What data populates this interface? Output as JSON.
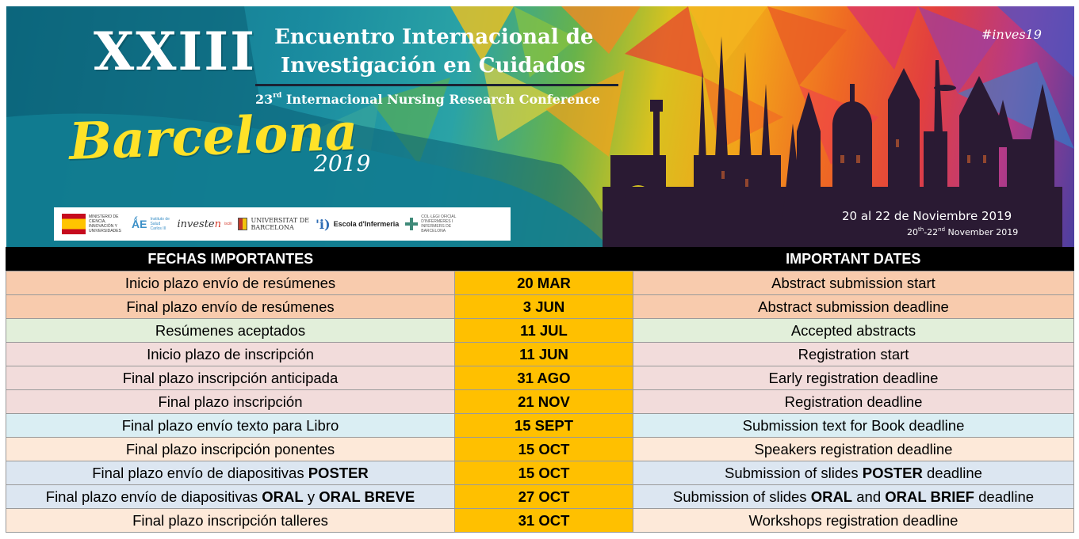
{
  "banner": {
    "number": "XXIII",
    "title_line1": "Encuentro Internacional de",
    "title_line2": "Investigación en Cuidados",
    "subtitle_ordinal": "23",
    "subtitle_suffix": "rd",
    "subtitle_text": "Internacional Nursing Research Conference",
    "city": "Barcelona",
    "year": "2019",
    "hashtag": "#inves19",
    "dates_es": "20 al 22 de Noviembre 2019",
    "dates_en_day1": "20",
    "dates_en_sup1": "th",
    "dates_en_day2": "-22",
    "dates_en_sup2": "nd",
    "dates_en_rest": " November 2019",
    "logos": {
      "ministerio": "MINISTERIO DE CIENCIA, INNOVACIÓN Y UNIVERSIDADES",
      "isc_mark": "ǺE",
      "isc_text": "Instituto de Salud Carlos III",
      "investen_a": "investe",
      "investen_b": "n",
      "investen_sub": "isciii",
      "ub_text_1": "UNIVERSITAT DE",
      "ub_text_2": "BARCELONA",
      "escola_mark": "'i)",
      "escola_text": "Escola d'Infermeria",
      "col_text": "COL·LEGI OFICIAL D'INFERMERES I INFERMERS DE BARCELONA"
    }
  },
  "table": {
    "header_es": "FECHAS IMPORTANTES",
    "header_date": "",
    "header_en": "IMPORTANT DATES",
    "rows": [
      {
        "es": "Inicio plazo envío de resúmenes",
        "es_bold": "",
        "es_mid": "",
        "es_bold2": "",
        "date": "20 MAR",
        "en": "Abstract submission start",
        "en_bold": "",
        "en_mid": "",
        "en_bold2": "",
        "en_tail": "",
        "bg": "#f8cbad"
      },
      {
        "es": "Final plazo envío de resúmenes",
        "es_bold": "",
        "es_mid": "",
        "es_bold2": "",
        "date": "3 JUN",
        "en": "Abstract submission deadline",
        "en_bold": "",
        "en_mid": "",
        "en_bold2": "",
        "en_tail": "",
        "bg": "#f8cbad"
      },
      {
        "es": "Resúmenes aceptados",
        "es_bold": "",
        "es_mid": "",
        "es_bold2": "",
        "date": "11 JUL",
        "en": "Accepted abstracts",
        "en_bold": "",
        "en_mid": "",
        "en_bold2": "",
        "en_tail": "",
        "bg": "#e2efda"
      },
      {
        "es": "Inicio plazo de inscripción",
        "es_bold": "",
        "es_mid": "",
        "es_bold2": "",
        "date": "11 JUN",
        "en": "Registration start",
        "en_bold": "",
        "en_mid": "",
        "en_bold2": "",
        "en_tail": "",
        "bg": "#f2dcdb"
      },
      {
        "es": "Final plazo inscripción anticipada",
        "es_bold": "",
        "es_mid": "",
        "es_bold2": "",
        "date": "31 AGO",
        "en": "Early registration deadline",
        "en_bold": "",
        "en_mid": "",
        "en_bold2": "",
        "en_tail": "",
        "bg": "#f2dcdb"
      },
      {
        "es": "Final plazo inscripción",
        "es_bold": "",
        "es_mid": "",
        "es_bold2": "",
        "date": "21 NOV",
        "en": "Registration deadline",
        "en_bold": "",
        "en_mid": "",
        "en_bold2": "",
        "en_tail": "",
        "bg": "#f2dcdb"
      },
      {
        "es": "Final plazo envío texto para Libro",
        "es_bold": "",
        "es_mid": "",
        "es_bold2": "",
        "date": "15 SEPT",
        "en": "Submission text for Book deadline",
        "en_bold": "",
        "en_mid": "",
        "en_bold2": "",
        "en_tail": "",
        "bg": "#daeef3"
      },
      {
        "es": "Final plazo inscripción ponentes",
        "es_bold": "",
        "es_mid": "",
        "es_bold2": "",
        "date": "15 OCT",
        "en": "Speakers registration deadline",
        "en_bold": "",
        "en_mid": "",
        "en_bold2": "",
        "en_tail": "",
        "bg": "#fde9d9"
      },
      {
        "es": "Final plazo envío de diapositivas ",
        "es_bold": "POSTER",
        "es_mid": "",
        "es_bold2": "",
        "date": "15 OCT",
        "en": "Submission of slides ",
        "en_bold": "POSTER",
        "en_mid": "",
        "en_bold2": "",
        "en_tail": " deadline",
        "bg": "#dce6f1"
      },
      {
        "es": "Final plazo envío de diapositivas ",
        "es_bold": "ORAL",
        "es_mid": " y ",
        "es_bold2": "ORAL BREVE",
        "date": "27 OCT",
        "en": "Submission of slides ",
        "en_bold": "ORAL",
        "en_mid": " and ",
        "en_bold2": "ORAL BRIEF",
        "en_tail": " deadline",
        "bg": "#dce6f1"
      },
      {
        "es": "Final plazo inscripción talleres",
        "es_bold": "",
        "es_mid": "",
        "es_bold2": "",
        "date": "31 OCT",
        "en": "Workshops registration deadline",
        "en_bold": "",
        "en_mid": "",
        "en_bold2": "",
        "en_tail": "",
        "bg": "#fde9d9"
      }
    ]
  },
  "colors": {
    "date_highlight": "#ffc000",
    "header_bg": "#000000",
    "city_yellow": "#ffe228",
    "skyline": "#2a1a33"
  }
}
